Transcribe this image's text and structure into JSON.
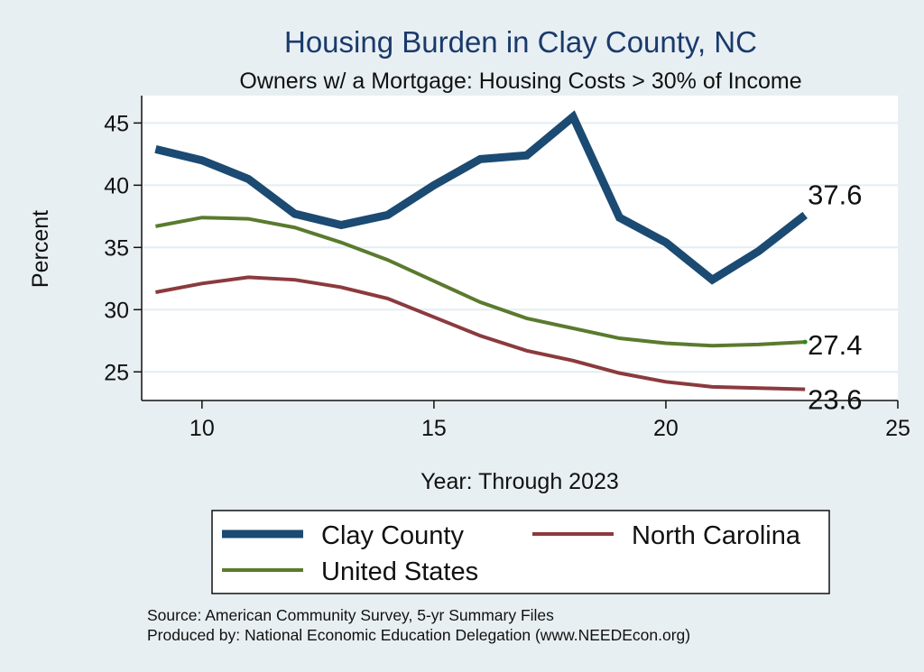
{
  "chart_data": {
    "type": "line",
    "title": "Housing Burden in Clay County, NC",
    "subtitle": "Owners w/ a Mortgage: Housing Costs > 30% of Income",
    "xlabel": "Year: Through 2023",
    "ylabel": "Percent",
    "xlim": [
      8.7,
      25
    ],
    "ylim": [
      22.7,
      47.2
    ],
    "xticks": [
      10,
      15,
      20,
      25
    ],
    "yticks": [
      25,
      30,
      35,
      40,
      45
    ],
    "grid": true,
    "legend_position": "bottom",
    "x": [
      9,
      10,
      11,
      12,
      13,
      14,
      15,
      16,
      17,
      18,
      19,
      20,
      21,
      22,
      23
    ],
    "series": [
      {
        "name": "Clay County",
        "color": "#1b4a72",
        "values": [
          42.9,
          42.0,
          40.5,
          37.7,
          36.8,
          37.6,
          40.0,
          42.1,
          42.4,
          45.5,
          37.4,
          35.4,
          32.4,
          34.7,
          37.6
        ],
        "end_label": "37.6"
      },
      {
        "name": "North Carolina",
        "color": "#8b3a3e",
        "values": [
          31.4,
          32.1,
          32.6,
          32.4,
          31.8,
          30.9,
          29.4,
          27.9,
          26.7,
          25.9,
          24.9,
          24.2,
          23.8,
          23.7,
          23.6
        ],
        "end_label": "23.6"
      },
      {
        "name": "United States",
        "color": "#5a7a2e",
        "values": [
          36.7,
          37.4,
          37.3,
          36.6,
          35.4,
          34.0,
          32.3,
          30.6,
          29.3,
          28.5,
          27.7,
          27.3,
          27.1,
          27.2,
          27.4
        ],
        "end_label": "27.4"
      }
    ]
  },
  "footer": {
    "source": "Source: American Community Survey, 5-yr Summary Files",
    "produced_by": "Produced by: National Economic Education Delegation (www.NEEDEcon.org)"
  }
}
